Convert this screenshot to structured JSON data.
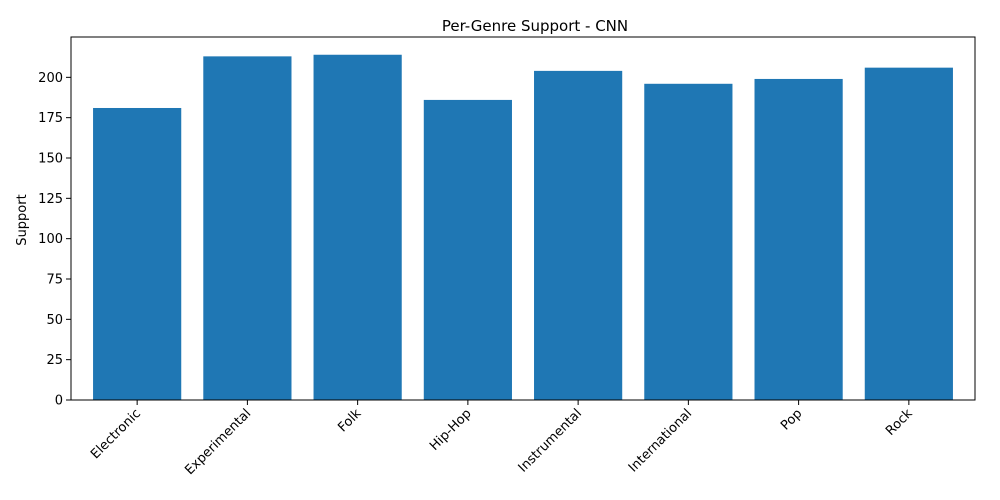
{
  "chart_data": {
    "type": "bar",
    "title": "Per-Genre Support - CNN",
    "xlabel": "",
    "ylabel": "Support",
    "categories": [
      "Electronic",
      "Experimental",
      "Folk",
      "Hip-Hop",
      "Instrumental",
      "International",
      "Pop",
      "Rock"
    ],
    "values": [
      181,
      213,
      214,
      186,
      204,
      196,
      199,
      206
    ],
    "ylim": [
      0,
      225
    ],
    "yticks": [
      0,
      25,
      50,
      75,
      100,
      125,
      150,
      175,
      200
    ],
    "bar_color": "#1f77b4",
    "grid": false,
    "legend": "none"
  }
}
